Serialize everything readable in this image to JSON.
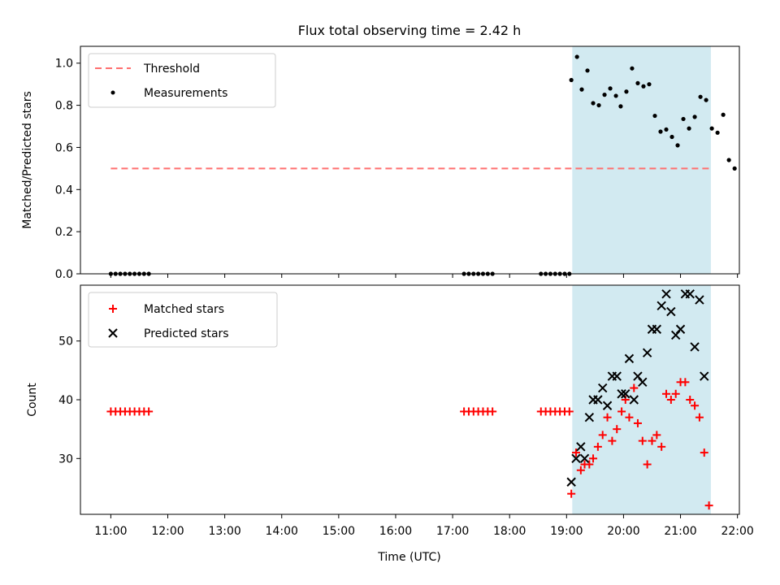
{
  "title": "Flux total observing time = 2.42 h",
  "colors": {
    "threshold": "#ff7070",
    "measurement": "#000000",
    "matched": "#ff0000",
    "predicted": "#000000",
    "highlight": "#add8e6"
  },
  "chart_data": [
    {
      "type": "scatter",
      "ylabel": "Matched/Predicted stars",
      "ylim": [
        0,
        1.08
      ],
      "yticks": [
        0.0,
        0.2,
        0.4,
        0.6,
        0.8,
        1.0
      ],
      "ytick_labels": [
        "0.0",
        "0.2",
        "0.4",
        "0.6",
        "0.8",
        "1.0"
      ],
      "legend_position": "top-left",
      "highlight_span": [
        "19:06",
        "21:32"
      ],
      "threshold": {
        "name": "Threshold",
        "value": 0.5,
        "x": [
          "11:00",
          "21:32"
        ]
      },
      "series": [
        {
          "name": "Measurements",
          "points": [
            [
              "11:00",
              0
            ],
            [
              "11:05",
              0
            ],
            [
              "11:10",
              0
            ],
            [
              "11:15",
              0
            ],
            [
              "11:20",
              0
            ],
            [
              "11:25",
              0
            ],
            [
              "11:30",
              0
            ],
            [
              "11:35",
              0
            ],
            [
              "11:40",
              0
            ],
            [
              "17:12",
              0
            ],
            [
              "17:17",
              0
            ],
            [
              "17:22",
              0
            ],
            [
              "17:27",
              0
            ],
            [
              "17:32",
              0
            ],
            [
              "17:37",
              0
            ],
            [
              "17:42",
              0
            ],
            [
              "18:33",
              0
            ],
            [
              "18:38",
              0
            ],
            [
              "18:43",
              0
            ],
            [
              "18:48",
              0
            ],
            [
              "18:53",
              0
            ],
            [
              "18:58",
              0
            ],
            [
              "19:03",
              0
            ],
            [
              "19:05",
              0.92
            ],
            [
              "19:11",
              1.03
            ],
            [
              "19:16",
              0.875
            ],
            [
              "19:22",
              0.965
            ],
            [
              "19:28",
              0.81
            ],
            [
              "19:34",
              0.8
            ],
            [
              "19:40",
              0.85
            ],
            [
              "19:46",
              0.88
            ],
            [
              "19:52",
              0.845
            ],
            [
              "19:57",
              0.795
            ],
            [
              "20:03",
              0.865
            ],
            [
              "20:09",
              0.975
            ],
            [
              "20:15",
              0.905
            ],
            [
              "20:21",
              0.89
            ],
            [
              "20:27",
              0.9
            ],
            [
              "20:33",
              0.75
            ],
            [
              "20:39",
              0.675
            ],
            [
              "20:45",
              0.685
            ],
            [
              "20:51",
              0.65
            ],
            [
              "20:57",
              0.61
            ],
            [
              "21:03",
              0.735
            ],
            [
              "21:09",
              0.69
            ],
            [
              "21:15",
              0.745
            ],
            [
              "21:21",
              0.84
            ],
            [
              "21:27",
              0.825
            ],
            [
              "21:33",
              0.69
            ],
            [
              "21:39",
              0.67
            ],
            [
              "21:45",
              0.755
            ],
            [
              "21:51",
              0.54
            ],
            [
              "21:57",
              0.5
            ]
          ]
        }
      ]
    },
    {
      "type": "scatter",
      "xlabel": "Time (UTC)",
      "ylabel": "Count",
      "xlim": [
        "10:28",
        "22:02"
      ],
      "ylim": [
        20.5,
        59.5
      ],
      "xticks": [
        "11:00",
        "12:00",
        "13:00",
        "14:00",
        "15:00",
        "16:00",
        "17:00",
        "18:00",
        "19:00",
        "20:00",
        "21:00",
        "22:00"
      ],
      "yticks": [
        30,
        40,
        50
      ],
      "ytick_labels": [
        "30",
        "40",
        "50"
      ],
      "legend_position": "top-left",
      "highlight_span": [
        "19:06",
        "21:32"
      ],
      "series": [
        {
          "name": "Matched stars",
          "marker": "plus",
          "points": [
            [
              "11:00",
              38
            ],
            [
              "11:05",
              38
            ],
            [
              "11:10",
              38
            ],
            [
              "11:15",
              38
            ],
            [
              "11:20",
              38
            ],
            [
              "11:25",
              38
            ],
            [
              "11:30",
              38
            ],
            [
              "11:35",
              38
            ],
            [
              "11:40",
              38
            ],
            [
              "17:12",
              38
            ],
            [
              "17:17",
              38
            ],
            [
              "17:22",
              38
            ],
            [
              "17:27",
              38
            ],
            [
              "17:32",
              38
            ],
            [
              "17:37",
              38
            ],
            [
              "17:42",
              38
            ],
            [
              "18:33",
              38
            ],
            [
              "18:38",
              38
            ],
            [
              "18:43",
              38
            ],
            [
              "18:48",
              38
            ],
            [
              "18:53",
              38
            ],
            [
              "18:58",
              38
            ],
            [
              "19:03",
              38
            ],
            [
              "19:05",
              24
            ],
            [
              "19:10",
              31
            ],
            [
              "19:15",
              28
            ],
            [
              "19:19",
              29
            ],
            [
              "19:24",
              29
            ],
            [
              "19:28",
              30
            ],
            [
              "19:33",
              32
            ],
            [
              "19:38",
              34
            ],
            [
              "19:43",
              37
            ],
            [
              "19:48",
              33
            ],
            [
              "19:53",
              35
            ],
            [
              "19:58",
              38
            ],
            [
              "20:02",
              40
            ],
            [
              "20:06",
              37
            ],
            [
              "20:11",
              42
            ],
            [
              "20:15",
              36
            ],
            [
              "20:20",
              33
            ],
            [
              "20:25",
              29
            ],
            [
              "20:30",
              33
            ],
            [
              "20:35",
              34
            ],
            [
              "20:40",
              32
            ],
            [
              "20:45",
              41
            ],
            [
              "20:50",
              40
            ],
            [
              "20:55",
              41
            ],
            [
              "21:00",
              43
            ],
            [
              "21:05",
              43
            ],
            [
              "21:10",
              40
            ],
            [
              "21:15",
              39
            ],
            [
              "21:20",
              37
            ],
            [
              "21:25",
              31
            ],
            [
              "21:30",
              22
            ]
          ]
        },
        {
          "name": "Predicted stars",
          "marker": "x",
          "points": [
            [
              "19:05",
              26
            ],
            [
              "19:10",
              30
            ],
            [
              "19:15",
              32
            ],
            [
              "19:19",
              30
            ],
            [
              "19:24",
              37
            ],
            [
              "19:28",
              40
            ],
            [
              "19:33",
              40
            ],
            [
              "19:38",
              42
            ],
            [
              "19:43",
              39
            ],
            [
              "19:48",
              44
            ],
            [
              "19:53",
              44
            ],
            [
              "19:58",
              41
            ],
            [
              "20:02",
              41
            ],
            [
              "20:06",
              47
            ],
            [
              "20:11",
              40
            ],
            [
              "20:15",
              44
            ],
            [
              "20:20",
              43
            ],
            [
              "20:25",
              48
            ],
            [
              "20:30",
              52
            ],
            [
              "20:35",
              52
            ],
            [
              "20:40",
              56
            ],
            [
              "20:45",
              58
            ],
            [
              "20:50",
              55
            ],
            [
              "20:55",
              51
            ],
            [
              "21:00",
              52
            ],
            [
              "21:05",
              58
            ],
            [
              "21:10",
              58
            ],
            [
              "21:15",
              49
            ],
            [
              "21:20",
              57
            ],
            [
              "21:25",
              44
            ]
          ]
        }
      ]
    }
  ]
}
